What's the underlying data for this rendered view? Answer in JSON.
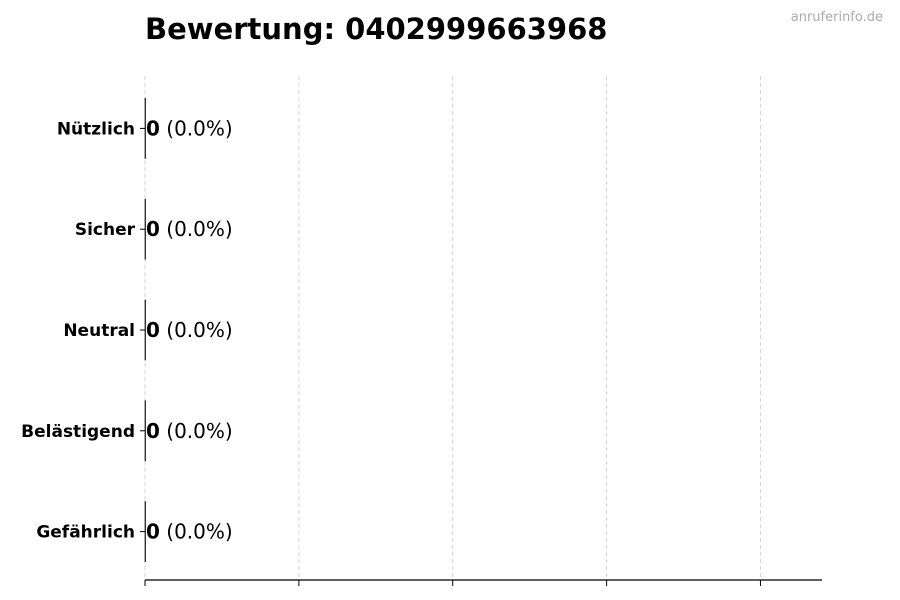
{
  "chart_data": {
    "type": "bar",
    "orientation": "horizontal",
    "title": "Bewertung: 0402999663968",
    "watermark": "anruferinfo.de",
    "categories": [
      "Nützlich",
      "Sicher",
      "Neutral",
      "Belästigend",
      "Gefährlich"
    ],
    "values": [
      0,
      0,
      0,
      0,
      0
    ],
    "data_labels": [
      {
        "count": "0",
        "percent": "(0.0%)"
      },
      {
        "count": "0",
        "percent": "(0.0%)"
      },
      {
        "count": "0",
        "percent": "(0.0%)"
      },
      {
        "count": "0",
        "percent": "(0.0%)"
      },
      {
        "count": "0",
        "percent": "(0.0%)"
      }
    ],
    "xlabel": "",
    "ylabel": "",
    "xlim": [
      0,
      4.4
    ],
    "xticks": [
      0,
      1,
      2,
      3,
      4
    ],
    "xtick_labels_shown": false,
    "grid": "x-dashed",
    "colors": {
      "bar_edge": "#333333",
      "grid": "#cccccc",
      "watermark": "#aaaaaa"
    }
  }
}
